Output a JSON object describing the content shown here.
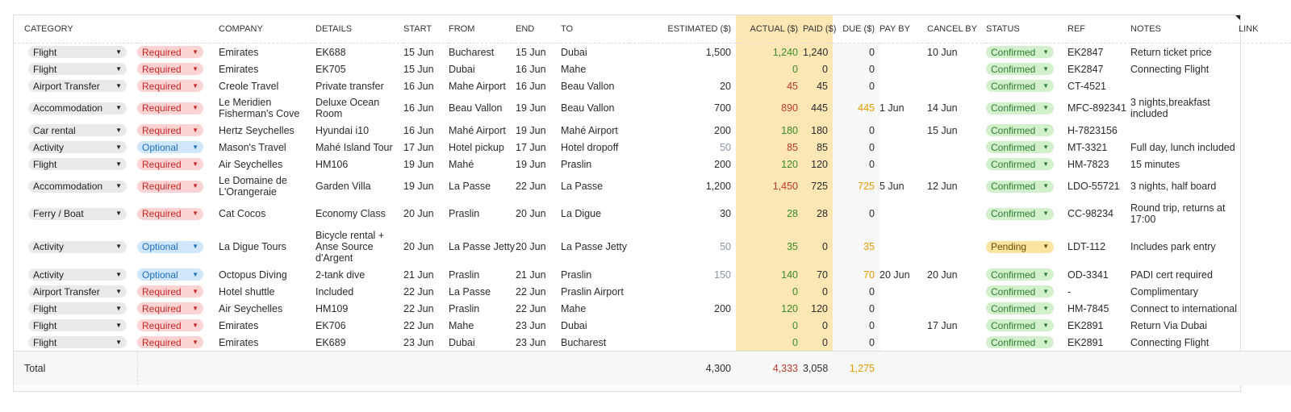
{
  "headers": {
    "category": "CATEGORY",
    "priority": "",
    "company": "COMPANY",
    "details": "DETAILS",
    "start": "START",
    "from": "FROM",
    "end": "END",
    "to": "TO",
    "estimated": "ESTIMATED ($)",
    "actual": "ACTUAL ($)",
    "paid": "PAID ($)",
    "due": "DUE ($)",
    "pay_by": "PAY BY",
    "cancel_by": "CANCEL BY",
    "status": "STATUS",
    "ref": "REF",
    "notes": "NOTES",
    "link": "LINK"
  },
  "colors": {
    "actual_highlight": "#fbe6b4",
    "over_budget": "#c0392b",
    "under_budget": "#3b8a2a",
    "due": "#e69a00",
    "required": "#fcd3d3",
    "optional": "#cfe6fb",
    "confirmed": "#d3f0cc",
    "pending": "#fbe3a0"
  },
  "rows": [
    {
      "category": "Flight",
      "priority": "Required",
      "company": "Emirates",
      "details": "EK688",
      "start": "15 Jun",
      "from": "Bucharest",
      "end": "15 Jun",
      "to": "Dubai",
      "estimated": "1,500",
      "actual": "1,240",
      "actual_state": "green",
      "paid": "1,240",
      "due": "0",
      "pay_by": "",
      "cancel_by": "10 Jun",
      "status": "Confirmed",
      "ref": "EK2847",
      "notes": "Return ticket price",
      "link": ""
    },
    {
      "category": "Flight",
      "priority": "Required",
      "company": "Emirates",
      "details": "EK705",
      "start": "15 Jun",
      "from": "Dubai",
      "end": "16 Jun",
      "to": "Mahe",
      "estimated": "",
      "actual": "0",
      "actual_state": "green",
      "paid": "0",
      "due": "0",
      "pay_by": "",
      "cancel_by": "",
      "status": "Confirmed",
      "ref": "EK2847",
      "notes": "Connecting Flight",
      "link": ""
    },
    {
      "category": "Airport Transfer",
      "priority": "Required",
      "company": "Creole Travel",
      "details": "Private transfer",
      "start": "16 Jun",
      "from": "Mahe Airport",
      "end": "16 Jun",
      "to": "Beau Vallon",
      "estimated": "20",
      "actual": "45",
      "actual_state": "red",
      "paid": "45",
      "due": "0",
      "pay_by": "",
      "cancel_by": "",
      "status": "Confirmed",
      "ref": "CT-4521",
      "notes": "",
      "link": ""
    },
    {
      "category": "Accommodation",
      "priority": "Required",
      "company": "Le Meridien Fisherman's Cove",
      "details": "Deluxe Ocean Room",
      "start": "16 Jun",
      "from": "Beau Vallon",
      "end": "19 Jun",
      "to": "Beau Vallon",
      "estimated": "700",
      "actual": "890",
      "actual_state": "red",
      "paid": "445",
      "due": "445",
      "pay_by": "1 Jun",
      "cancel_by": "14 Jun",
      "status": "Confirmed",
      "ref": "MFC-892341",
      "notes": "3 nights,breakfast included",
      "link": ""
    },
    {
      "category": "Car rental",
      "priority": "Required",
      "company": "Hertz Seychelles",
      "details": "Hyundai i10",
      "start": "16 Jun",
      "from": "Mahé Airport",
      "end": "19 Jun",
      "to": "Mahé Airport",
      "estimated": "200",
      "actual": "180",
      "actual_state": "green",
      "paid": "180",
      "due": "0",
      "pay_by": "",
      "cancel_by": "15 Jun",
      "status": "Confirmed",
      "ref": "H-7823156",
      "notes": "",
      "link": ""
    },
    {
      "category": "Activity",
      "priority": "Optional",
      "company": "Mason's Travel",
      "details": "Mahé Island Tour",
      "start": "17 Jun",
      "from": "Hotel pickup",
      "end": "17 Jun",
      "to": "Hotel dropoff",
      "estimated": "50",
      "actual": "85",
      "actual_state": "red",
      "paid": "85",
      "due": "0",
      "pay_by": "",
      "cancel_by": "",
      "status": "Confirmed",
      "ref": "MT-3321",
      "notes": "Full day, lunch included",
      "link": ""
    },
    {
      "category": "Flight",
      "priority": "Required",
      "company": "Air Seychelles",
      "details": "HM106",
      "start": "19 Jun",
      "from": "Mahé",
      "end": "19 Jun",
      "to": "Praslin",
      "estimated": "200",
      "actual": "120",
      "actual_state": "green",
      "paid": "120",
      "due": "0",
      "pay_by": "",
      "cancel_by": "",
      "status": "Confirmed",
      "ref": "HM-7823",
      "notes": "15 minutes",
      "link": ""
    },
    {
      "category": "Accommodation",
      "priority": "Required",
      "company": "Le Domaine de L'Orangeraie",
      "details": "Garden Villa",
      "start": "19 Jun",
      "from": "La Passe",
      "end": "22 Jun",
      "to": "La Passe",
      "estimated": "1,200",
      "actual": "1,450",
      "actual_state": "red",
      "paid": "725",
      "due": "725",
      "pay_by": "5 Jun",
      "cancel_by": "12 Jun",
      "status": "Confirmed",
      "ref": "LDO-55721",
      "notes": "3 nights, half board",
      "link": ""
    },
    {
      "category": "Ferry / Boat",
      "priority": "Required",
      "company": "Cat Cocos",
      "details": "Economy Class",
      "start": "20 Jun",
      "from": "Praslin",
      "end": "20 Jun",
      "to": "La Digue",
      "estimated": "30",
      "actual": "28",
      "actual_state": "green",
      "paid": "28",
      "due": "0",
      "pay_by": "",
      "cancel_by": "",
      "status": "Confirmed",
      "ref": "CC-98234",
      "notes": "Round trip, returns at 17:00",
      "link": ""
    },
    {
      "category": "Activity",
      "priority": "Optional",
      "company": "La Digue Tours",
      "details": "Bicycle rental + Anse Source d'Argent",
      "start": "20 Jun",
      "from": "La Passe Jetty",
      "end": "20 Jun",
      "to": "La Passe Jetty",
      "estimated": "50",
      "actual": "35",
      "actual_state": "green",
      "paid": "0",
      "due": "35",
      "pay_by": "",
      "cancel_by": "",
      "status": "Pending",
      "ref": "LDT-112",
      "notes": "Includes park entry",
      "link": ""
    },
    {
      "category": "Activity",
      "priority": "Optional",
      "company": "Octopus Diving",
      "details": "2-tank dive",
      "start": "21 Jun",
      "from": "Praslin",
      "end": "21 Jun",
      "to": "Praslin",
      "estimated": "150",
      "actual": "140",
      "actual_state": "green",
      "paid": "70",
      "due": "70",
      "pay_by": "20 Jun",
      "cancel_by": "20 Jun",
      "status": "Confirmed",
      "ref": "OD-3341",
      "notes": "PADI cert required",
      "link": ""
    },
    {
      "category": "Airport Transfer",
      "priority": "Required",
      "company": "Hotel shuttle",
      "details": "Included",
      "start": "22 Jun",
      "from": "La Passe",
      "end": "22 Jun",
      "to": "Praslin Airport",
      "estimated": "",
      "actual": "0",
      "actual_state": "green",
      "paid": "0",
      "due": "0",
      "pay_by": "",
      "cancel_by": "",
      "status": "Confirmed",
      "ref": "-",
      "notes": "Complimentary",
      "link": ""
    },
    {
      "category": "Flight",
      "priority": "Required",
      "company": "Air Seychelles",
      "details": "HM109",
      "start": "22 Jun",
      "from": "Praslin",
      "end": "22 Jun",
      "to": "Mahe",
      "estimated": "200",
      "actual": "120",
      "actual_state": "green",
      "paid": "120",
      "due": "0",
      "pay_by": "",
      "cancel_by": "",
      "status": "Confirmed",
      "ref": "HM-7845",
      "notes": "Connect to international",
      "link": ""
    },
    {
      "category": "Flight",
      "priority": "Required",
      "company": "Emirates",
      "details": "EK706",
      "start": "22 Jun",
      "from": "Mahe",
      "end": "23 Jun",
      "to": "Dubai",
      "estimated": "",
      "actual": "0",
      "actual_state": "green",
      "paid": "0",
      "due": "0",
      "pay_by": "",
      "cancel_by": "17 Jun",
      "status": "Confirmed",
      "ref": "EK2891",
      "notes": "Return Via Dubai",
      "link": ""
    },
    {
      "category": "Flight",
      "priority": "Required",
      "company": "Emirates",
      "details": "EK689",
      "start": "23 Jun",
      "from": "Dubai",
      "end": "23 Jun",
      "to": "Bucharest",
      "estimated": "",
      "actual": "0",
      "actual_state": "green",
      "paid": "0",
      "due": "0",
      "pay_by": "",
      "cancel_by": "",
      "status": "Confirmed",
      "ref": "EK2891",
      "notes": "Connecting Flight",
      "link": ""
    }
  ],
  "totals": {
    "label": "Total",
    "estimated": "4,300",
    "actual": "4,333",
    "paid": "3,058",
    "due": "1,275"
  }
}
